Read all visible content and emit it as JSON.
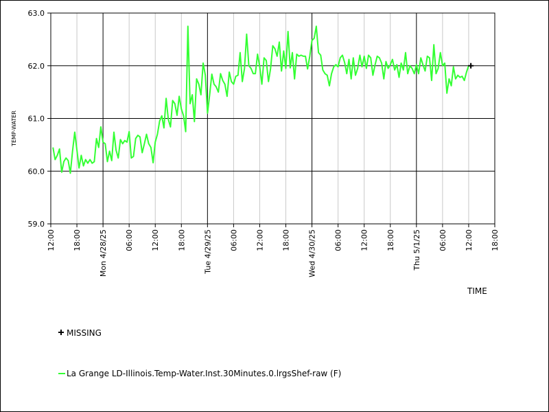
{
  "chart_data": {
    "type": "line",
    "xlabel": "TIME",
    "ylabel": "TEMP-WATER",
    "ylim": [
      59.0,
      63.0
    ],
    "y_ticks": [
      "63.0",
      "62.0",
      "61.0",
      "60.0",
      "59.0"
    ],
    "x_ticks_hours": [
      0,
      6,
      12,
      18,
      24,
      30,
      36,
      42,
      48,
      54,
      60,
      66,
      72,
      78,
      84,
      90,
      96,
      102
    ],
    "x_tick_labels": [
      "12:00",
      "18:00",
      "Mon 4/28/25",
      "06:00",
      "12:00",
      "18:00",
      "Tue 4/29/25",
      "06:00",
      "12:00",
      "18:00",
      "Wed 4/30/25",
      "06:00",
      "12:00",
      "18:00",
      "Thu 5/1/25",
      "06:00",
      "12:00",
      "18:00"
    ],
    "x_range_hours": [
      0,
      102
    ],
    "major_grid_hours": [
      12,
      36,
      60,
      84
    ],
    "legend": [
      {
        "label": "MISSING",
        "marker": "plus",
        "color": "#000000"
      },
      {
        "label": "La Grange LD-Illinois.Temp-Water.Inst.30Minutes.0.lrgsShef-raw (F)",
        "marker": "line",
        "color": "#33ff33"
      }
    ],
    "missing_points": [
      {
        "x": 96.5,
        "y": 62.0
      }
    ],
    "series": [
      {
        "name": "La Grange LD-Illinois.Temp-Water.Inst.30Minutes.0.lrgsShef-raw (F)",
        "color": "#33ff33",
        "x_start_hour": 0.5,
        "step_hours": 0.5,
        "values": [
          60.45,
          60.22,
          60.3,
          60.42,
          59.98,
          60.18,
          60.25,
          60.2,
          59.96,
          60.38,
          60.74,
          60.4,
          60.06,
          60.3,
          60.1,
          60.22,
          60.15,
          60.22,
          60.15,
          60.18,
          60.62,
          60.45,
          60.84,
          60.55,
          60.52,
          60.18,
          60.38,
          60.2,
          60.74,
          60.4,
          60.25,
          60.6,
          60.52,
          60.58,
          60.55,
          60.75,
          60.25,
          60.28,
          60.62,
          60.68,
          60.65,
          60.35,
          60.52,
          60.7,
          60.52,
          60.45,
          60.16,
          60.55,
          60.7,
          60.95,
          61.05,
          60.82,
          61.38,
          60.98,
          60.84,
          61.34,
          61.28,
          61.06,
          61.42,
          61.18,
          61.05,
          60.75,
          62.75,
          61.28,
          61.45,
          60.94,
          61.75,
          61.65,
          61.45,
          62.05,
          61.82,
          61.1,
          61.45,
          61.84,
          61.65,
          61.6,
          61.5,
          61.85,
          61.72,
          61.65,
          61.42,
          61.88,
          61.7,
          61.65,
          61.8,
          61.82,
          62.25,
          61.7,
          61.95,
          62.6,
          62.0,
          61.95,
          61.85,
          61.85,
          62.22,
          61.98,
          61.65,
          62.15,
          62.1,
          61.7,
          61.95,
          62.38,
          62.32,
          62.18,
          62.45,
          61.9,
          62.28,
          61.95,
          62.65,
          61.96,
          62.25,
          61.75,
          62.22,
          62.18,
          62.2,
          62.18,
          62.18,
          61.94,
          62.18,
          62.48,
          62.52,
          62.75,
          62.25,
          62.2,
          61.92,
          61.85,
          61.82,
          61.62,
          61.85,
          61.98,
          62.02,
          61.98,
          62.15,
          62.2,
          62.06,
          61.85,
          62.12,
          61.75,
          62.15,
          61.82,
          61.95,
          62.2,
          61.98,
          62.18,
          61.95,
          62.2,
          62.15,
          61.82,
          62.02,
          62.18,
          62.15,
          62.05,
          61.75,
          62.08,
          61.95,
          62.02,
          62.12,
          61.92,
          62.02,
          61.78,
          62.05,
          61.92,
          62.25,
          61.85,
          62.0,
          61.95,
          61.85,
          62.02,
          61.85,
          62.15,
          62.02,
          61.9,
          62.18,
          62.15,
          61.72,
          62.4,
          61.85,
          61.95,
          62.25,
          62.0,
          62.05,
          61.48,
          61.75,
          61.62,
          61.98,
          61.75,
          61.82,
          61.78,
          61.8,
          61.72,
          61.88,
          62.0
        ]
      }
    ]
  }
}
